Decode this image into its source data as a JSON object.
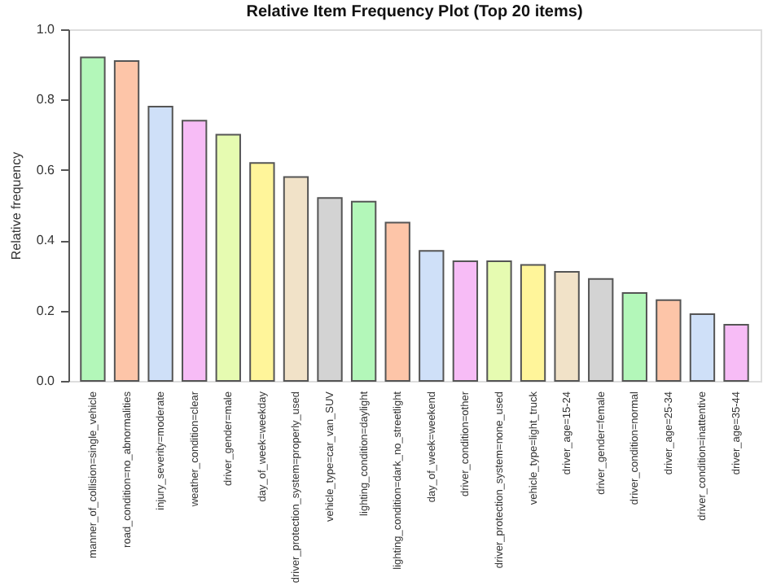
{
  "chart_data": {
    "type": "bar",
    "title": "Relative Item Frequency Plot (Top 20 items)",
    "ylabel": "Relative frequency",
    "categories": [
      "manner_of_collision=single_vehicle",
      "road_condition=no_abnormalities",
      "injury_severity=moderate",
      "weather_condition=clear",
      "driver_gender=male",
      "day_of_week=weekday",
      "driver_protection_system=properly_used",
      "vehicle_type=car_van_SUV",
      "lighting_condition=daylight",
      "lighting_condition=dark_no_streetlight",
      "day_of_week=weekend",
      "driver_condition=other",
      "driver_protection_system=none_used",
      "vehicle_type=light_truck",
      "driver_age=15-24",
      "driver_gender=female",
      "driver_condition=normal",
      "driver_age=25-34",
      "driver_condition=inattentive",
      "driver_age=35-44"
    ],
    "values": [
      0.92,
      0.91,
      0.78,
      0.74,
      0.7,
      0.62,
      0.58,
      0.52,
      0.51,
      0.45,
      0.37,
      0.34,
      0.34,
      0.33,
      0.31,
      0.29,
      0.25,
      0.23,
      0.19,
      0.16
    ],
    "colors": [
      "#b3f7b9",
      "#fdc5a8",
      "#cfe0f8",
      "#f7bcf6",
      "#e6fbb1",
      "#fff59a",
      "#f1e2c8",
      "#d3d3d3",
      "#b3f7b9",
      "#fdc5a8",
      "#cfe0f8",
      "#f7bcf6",
      "#e6fbb1",
      "#fff59a",
      "#f1e2c8",
      "#d3d3d3",
      "#b3f7b9",
      "#fdc5a8",
      "#cfe0f8",
      "#f7bcf6"
    ],
    "ylim": [
      0,
      1
    ],
    "yticks": [
      {
        "value": 0,
        "label": "0.0"
      },
      {
        "value": 0.2,
        "label": "0.2"
      },
      {
        "value": 0.4,
        "label": "0.4"
      },
      {
        "value": 0.6,
        "label": "0.6"
      },
      {
        "value": 0.8,
        "label": "0.8"
      },
      {
        "value": 1,
        "label": "1.0"
      }
    ],
    "grid": false
  }
}
